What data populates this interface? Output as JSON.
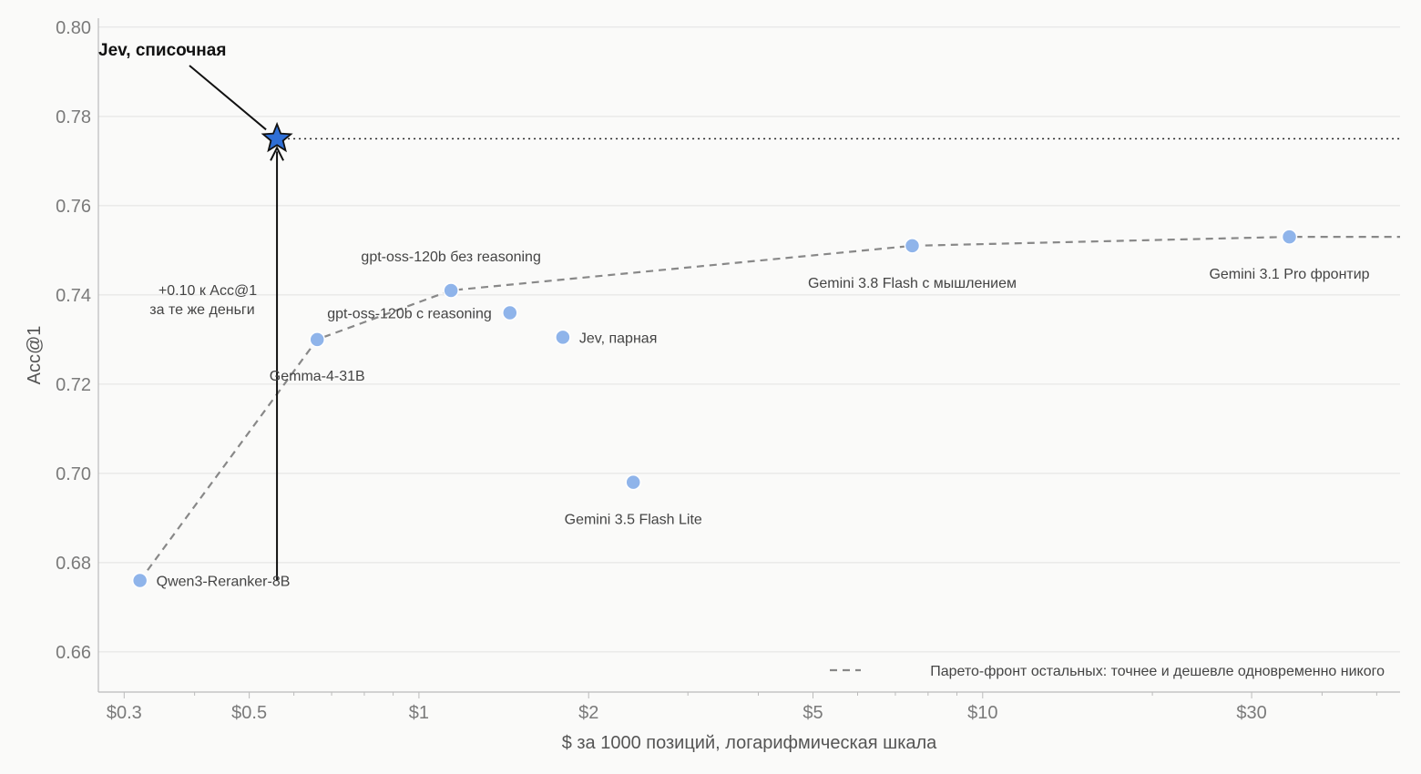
{
  "chart_data": {
    "type": "scatter",
    "xscale": "log",
    "xlim": [
      0.27,
      55
    ],
    "ylim": [
      0.651,
      0.802
    ],
    "xlabel": "$ за 1000 позиций, логарифмическая шкала",
    "ylabel": "Acc@1",
    "x_ticks": [
      {
        "value": 0.3,
        "label": "$0.3"
      },
      {
        "value": 0.5,
        "label": "$0.5"
      },
      {
        "value": 1,
        "label": "$1"
      },
      {
        "value": 2,
        "label": "$2"
      },
      {
        "value": 5,
        "label": "$5"
      },
      {
        "value": 10,
        "label": "$10"
      },
      {
        "value": 30,
        "label": "$30"
      }
    ],
    "x_minor_ticks": [
      0.4,
      0.6,
      0.7,
      0.8,
      0.9,
      3,
      4,
      6,
      7,
      8,
      9,
      20,
      40,
      50
    ],
    "y_ticks": [
      {
        "value": 0.66,
        "label": "0.66"
      },
      {
        "value": 0.68,
        "label": "0.68"
      },
      {
        "value": 0.7,
        "label": "0.70"
      },
      {
        "value": 0.72,
        "label": "0.72"
      },
      {
        "value": 0.74,
        "label": "0.74"
      },
      {
        "value": 0.76,
        "label": "0.76"
      },
      {
        "value": 0.78,
        "label": "0.78"
      },
      {
        "value": 0.8,
        "label": "0.80"
      }
    ],
    "grid": "horizontal",
    "points": [
      {
        "name": "Qwen3-Reranker-8B",
        "x": 0.32,
        "y": 0.676
      },
      {
        "name": "Gemma-4-31B",
        "x": 0.66,
        "y": 0.73
      },
      {
        "name": "gpt-oss-120b без reasoning",
        "x": 1.14,
        "y": 0.741
      },
      {
        "name": "gpt-oss-120b с reasoning",
        "x": 1.45,
        "y": 0.736
      },
      {
        "name": "Jev, парная",
        "x": 1.8,
        "y": 0.7305
      },
      {
        "name": "Gemini 3.5 Flash Lite",
        "x": 2.4,
        "y": 0.698
      },
      {
        "name": "Gemini 3.8 Flash с мышлением",
        "x": 7.5,
        "y": 0.751
      },
      {
        "name": "Gemini 3.1 Pro фронтир",
        "x": 35,
        "y": 0.753
      }
    ],
    "highlight": {
      "name": "Jev, списочная",
      "x": 0.56,
      "y": 0.775
    },
    "pareto_front": [
      {
        "x": 0.32,
        "y": 0.676
      },
      {
        "x": 0.66,
        "y": 0.73
      },
      {
        "x": 1.14,
        "y": 0.741
      },
      {
        "x": 7.5,
        "y": 0.751
      },
      {
        "x": 35,
        "y": 0.753
      },
      {
        "x": 55,
        "y": 0.753
      }
    ],
    "annotation_gain": {
      "line1": "+0.10 к Acc@1",
      "line2": "за те же деньги",
      "from_y": 0.676,
      "to_y": 0.775,
      "x": 0.56
    },
    "legend": {
      "label": "Парето-фронт остальных: точнее и дешевле одновременно никого",
      "position": "bottom-right"
    },
    "colors": {
      "points": "#8fb4ea",
      "highlight": "#2f6fd6",
      "pareto": "#888888",
      "grid": "#e2e2e2",
      "axis": "#bbbbbb"
    }
  }
}
